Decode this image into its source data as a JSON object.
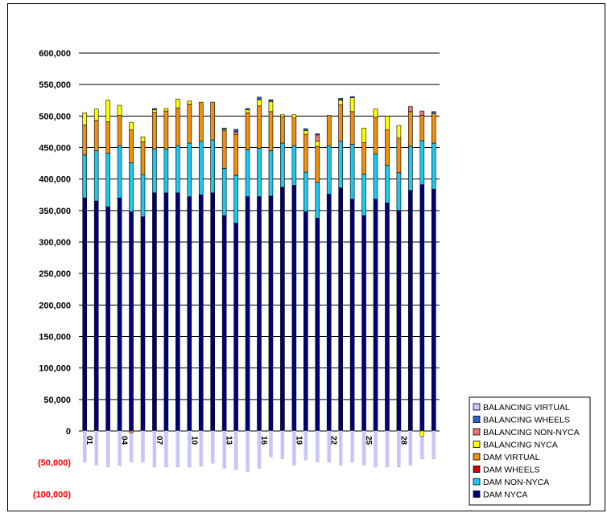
{
  "chart_data": {
    "type": "bar",
    "stacked": true,
    "title": "",
    "xlabel": "",
    "ylabel": "",
    "ylim": [
      -100000,
      600000
    ],
    "y_ticks": [
      "600,000",
      "550,000",
      "500,000",
      "450,000",
      "400,000",
      "350,000",
      "300,000",
      "250,000",
      "200,000",
      "150,000",
      "100,000",
      "50,000",
      "0",
      "(50,000)",
      "(100,000)"
    ],
    "y_tick_values": [
      600000,
      550000,
      500000,
      450000,
      400000,
      350000,
      300000,
      250000,
      200000,
      150000,
      100000,
      50000,
      0,
      -50000,
      -100000
    ],
    "negative_tick_color": "#ff0000",
    "grid": "horizontal",
    "legend_position": "bottom-right",
    "categories": [
      "01",
      "02",
      "03",
      "04",
      "05",
      "06",
      "07",
      "08",
      "09",
      "10",
      "11",
      "12",
      "13",
      "14",
      "15",
      "16",
      "17",
      "18",
      "19",
      "20",
      "21",
      "22",
      "23",
      "24",
      "25",
      "26",
      "27",
      "28",
      "29",
      "30",
      "31"
    ],
    "x_tick_labels": [
      "01",
      "",
      "",
      "04",
      "",
      "",
      "07",
      "",
      "",
      "10",
      "",
      "",
      "13",
      "",
      "",
      "16",
      "",
      "",
      "19",
      "",
      "",
      "22",
      "",
      "",
      "25",
      "",
      "",
      "28",
      "",
      "",
      ""
    ],
    "series": [
      {
        "name": "DAM NYCA",
        "color": "#00007a",
        "values": [
          370000,
          365000,
          356000,
          370000,
          348000,
          340000,
          378000,
          378000,
          378000,
          372000,
          375000,
          378000,
          342000,
          330000,
          372000,
          372000,
          373000,
          387000,
          390000,
          348000,
          338000,
          376000,
          386000,
          368000,
          342000,
          368000,
          362000,
          350000,
          382000,
          391000,
          384000
        ]
      },
      {
        "name": "DAM NON-NYCA",
        "color": "#1fc6ee",
        "values": [
          68000,
          80000,
          85000,
          83000,
          78000,
          67000,
          70000,
          70000,
          75000,
          85000,
          85000,
          84000,
          75000,
          76000,
          75000,
          77000,
          72000,
          70000,
          63000,
          63000,
          57000,
          77000,
          74000,
          87000,
          66000,
          72000,
          60000,
          60000,
          70000,
          70000,
          73000
        ]
      },
      {
        "name": "DAM WHEELS",
        "color": "#cc0000",
        "values": [
          0,
          0,
          0,
          0,
          0,
          0,
          0,
          0,
          0,
          0,
          0,
          0,
          0,
          0,
          0,
          0,
          0,
          0,
          0,
          0,
          0,
          0,
          0,
          0,
          0,
          0,
          0,
          0,
          0,
          0,
          0
        ]
      },
      {
        "name": "DAM VIRTUAL",
        "color": "#f0900c",
        "values": [
          48000,
          48000,
          50000,
          48000,
          52000,
          52000,
          58000,
          60000,
          60000,
          62000,
          62000,
          60000,
          60000,
          65000,
          58000,
          67000,
          62000,
          42000,
          44000,
          60000,
          57000,
          48000,
          58000,
          52000,
          50000,
          58000,
          56000,
          55000,
          55000,
          40000,
          47000
        ]
      },
      {
        "name": "BALANCING NYCA",
        "color": "#ffff00",
        "values": [
          19000,
          18000,
          34000,
          16000,
          12000,
          8000,
          4000,
          4000,
          14000,
          5000,
          0,
          0,
          2000,
          0,
          5000,
          10000,
          16000,
          3000,
          5000,
          6000,
          8000,
          0,
          7000,
          22000,
          23000,
          13000,
          22000,
          20000,
          0,
          0,
          0
        ]
      },
      {
        "name": "BALANCING NON-NYCA",
        "color": "#ec7676",
        "values": [
          0,
          0,
          0,
          0,
          0,
          0,
          0,
          0,
          0,
          0,
          0,
          0,
          0,
          4000,
          0,
          0,
          0,
          0,
          0,
          0,
          10000,
          0,
          0,
          0,
          0,
          0,
          0,
          0,
          8000,
          7000,
          0
        ]
      },
      {
        "name": "BALANCING WHEELS",
        "color": "#2a62c6",
        "values": [
          0,
          0,
          0,
          0,
          0,
          0,
          2000,
          0,
          0,
          0,
          0,
          0,
          2000,
          4000,
          2000,
          4000,
          3000,
          0,
          0,
          3000,
          2000,
          0,
          3000,
          2000,
          0,
          0,
          0,
          0,
          0,
          0,
          3000
        ]
      },
      {
        "name": "BALANCING VIRTUAL",
        "color": "#c7c6f5",
        "values": [
          -50000,
          -55000,
          -58000,
          -56000,
          -50000,
          -50000,
          -58000,
          -58000,
          -58000,
          -58000,
          -57000,
          -52000,
          -60000,
          -62000,
          -65000,
          -60000,
          -42000,
          -45000,
          -55000,
          -47000,
          -50000,
          -50000,
          -55000,
          -50000,
          -55000,
          -58000,
          -58000,
          -58000,
          -55000,
          -45000,
          -45000
        ]
      }
    ],
    "negative_small": [
      {
        "name": "BALANCING NYCA",
        "index": 29,
        "value": -8000
      },
      {
        "name": "DAM VIRTUAL",
        "index": 4,
        "value": -3000
      }
    ]
  },
  "legend": [
    {
      "label": "BALANCING VIRTUAL",
      "color": "#c7c6f5"
    },
    {
      "label": "BALANCING WHEELS",
      "color": "#2a62c6"
    },
    {
      "label": "BALANCING NON-NYCA",
      "color": "#ec7676"
    },
    {
      "label": "BALANCING NYCA",
      "color": "#ffff00"
    },
    {
      "label": "DAM VIRTUAL",
      "color": "#f0900c"
    },
    {
      "label": "DAM WHEELS",
      "color": "#cc0000"
    },
    {
      "label": "DAM NON-NYCA",
      "color": "#1fc6ee"
    },
    {
      "label": "DAM NYCA",
      "color": "#00007a"
    }
  ]
}
